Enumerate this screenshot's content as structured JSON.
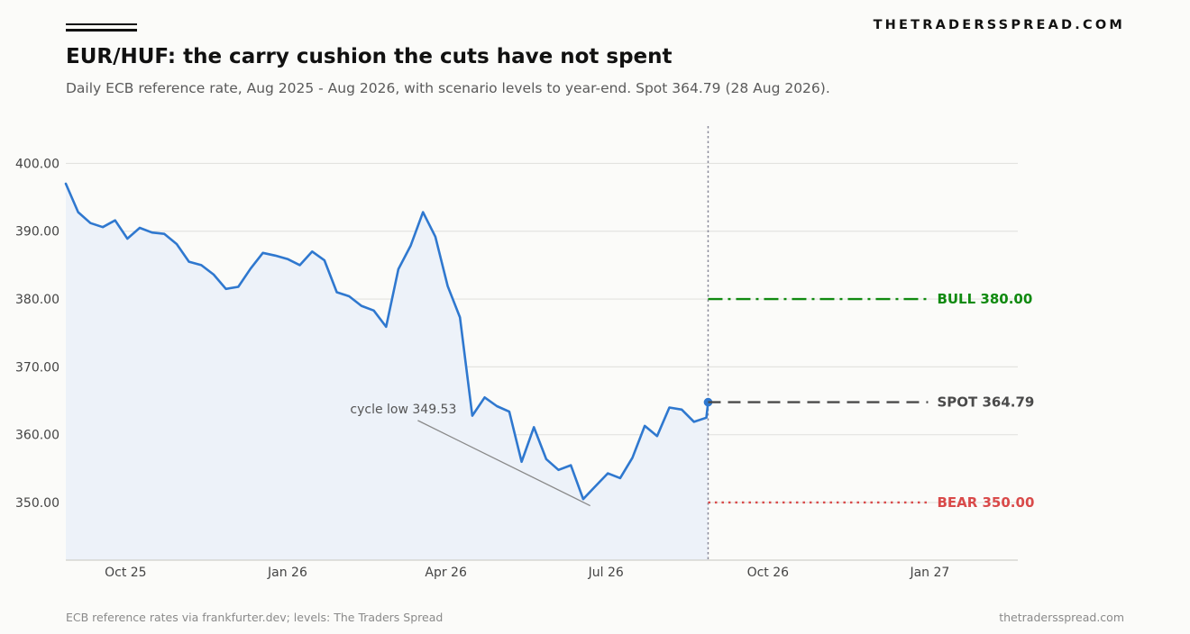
{
  "header": {
    "brand": "THETRADERSSPREAD.COM",
    "title": "EUR/HUF: the carry cushion the cuts have not spent",
    "subtitle": "Daily ECB reference rate, Aug 2025 - Aug 2026, with scenario levels to year-end. Spot 364.79 (28 Aug 2026)."
  },
  "footer": {
    "source": "ECB reference rates via frankfurter.dev; levels: The Traders Spread",
    "site": "thetradersspread.com"
  },
  "chart_data": {
    "type": "line",
    "title": "EUR/HUF: the carry cushion the cuts have not spent",
    "xlabel": "",
    "ylabel": "",
    "ylim": [
      341.5,
      405.5
    ],
    "xlim": [
      "2025-08-28",
      "2027-02-20"
    ],
    "y_ticks": [
      350,
      360,
      370,
      380,
      390,
      400
    ],
    "y_tick_labels": [
      "350.00",
      "360.00",
      "370.00",
      "380.00",
      "390.00",
      "400.00"
    ],
    "x_ticks": [
      {
        "date": "2025-10-01",
        "label": "Oct 25"
      },
      {
        "date": "2026-01-01",
        "label": "Jan 26"
      },
      {
        "date": "2026-04-01",
        "label": "Apr 26"
      },
      {
        "date": "2026-07-01",
        "label": "Jul 26"
      },
      {
        "date": "2026-10-01",
        "label": "Oct 26"
      },
      {
        "date": "2027-01-01",
        "label": "Jan 27"
      }
    ],
    "grid": "horizontal",
    "color": "#2f78cf",
    "fill_color": "#edf2f9",
    "series": [
      {
        "x": [
          "2025-08-28",
          "2025-09-04",
          "2025-09-11",
          "2025-09-18",
          "2025-09-25",
          "2025-10-02",
          "2025-10-09",
          "2025-10-16",
          "2025-10-23",
          "2025-10-30",
          "2025-11-06",
          "2025-11-13",
          "2025-11-20",
          "2025-11-27",
          "2025-12-04",
          "2025-12-11",
          "2025-12-18",
          "2025-12-25",
          "2026-01-01",
          "2026-01-08",
          "2026-01-15",
          "2026-01-22",
          "2026-01-29",
          "2026-02-05",
          "2026-02-12",
          "2026-02-19",
          "2026-02-26",
          "2026-03-05",
          "2026-03-12",
          "2026-03-19",
          "2026-03-26",
          "2026-04-02",
          "2026-04-09",
          "2026-04-16",
          "2026-04-23",
          "2026-04-30",
          "2026-05-07",
          "2026-05-14",
          "2026-05-21",
          "2026-05-28",
          "2026-06-04",
          "2026-06-11",
          "2026-06-18",
          "2026-06-25",
          "2026-07-02",
          "2026-07-09",
          "2026-07-16",
          "2026-07-23",
          "2026-07-30",
          "2026-08-06",
          "2026-08-13",
          "2026-08-20",
          "2026-08-27",
          "2026-08-28"
        ],
        "values": [
          397.0,
          392.8,
          391.2,
          390.6,
          391.6,
          388.9,
          390.5,
          389.8,
          389.6,
          388.1,
          385.5,
          385.0,
          383.6,
          381.5,
          381.8,
          384.5,
          386.8,
          386.4,
          385.9,
          385.0,
          387.0,
          385.7,
          381.0,
          380.4,
          379.0,
          378.3,
          375.9,
          384.4,
          387.9,
          392.8,
          389.2,
          381.9,
          377.3,
          362.8,
          365.5,
          364.2,
          363.4,
          356.0,
          361.1,
          356.4,
          354.8,
          355.5,
          350.5,
          352.4,
          354.3,
          353.6,
          356.6,
          361.3,
          359.8,
          364.0,
          363.7,
          361.9,
          362.5,
          364.79
        ]
      }
    ],
    "spot": {
      "date": "2026-08-28",
      "value": 364.79
    },
    "scenarios": [
      {
        "name": "BULL",
        "value": 380.0,
        "text": "BULL  380.00",
        "color": "#108a10",
        "style": "dashdot",
        "end": "2026-12-31"
      },
      {
        "name": "SPOT",
        "value": 364.79,
        "text": "SPOT  364.79",
        "color": "#4a4a4a",
        "style": "dashed",
        "end": "2026-12-31"
      },
      {
        "name": "BEAR",
        "value": 350.0,
        "text": "BEAR  350.00",
        "color": "#d94a4a",
        "style": "dotted",
        "end": "2026-12-31"
      }
    ],
    "annotation": {
      "text": "cycle low 349.53",
      "point": {
        "date": "2026-06-22",
        "value": 349.53
      },
      "text_anchor": {
        "date": "2026-03-16",
        "value": 362.1
      }
    }
  }
}
